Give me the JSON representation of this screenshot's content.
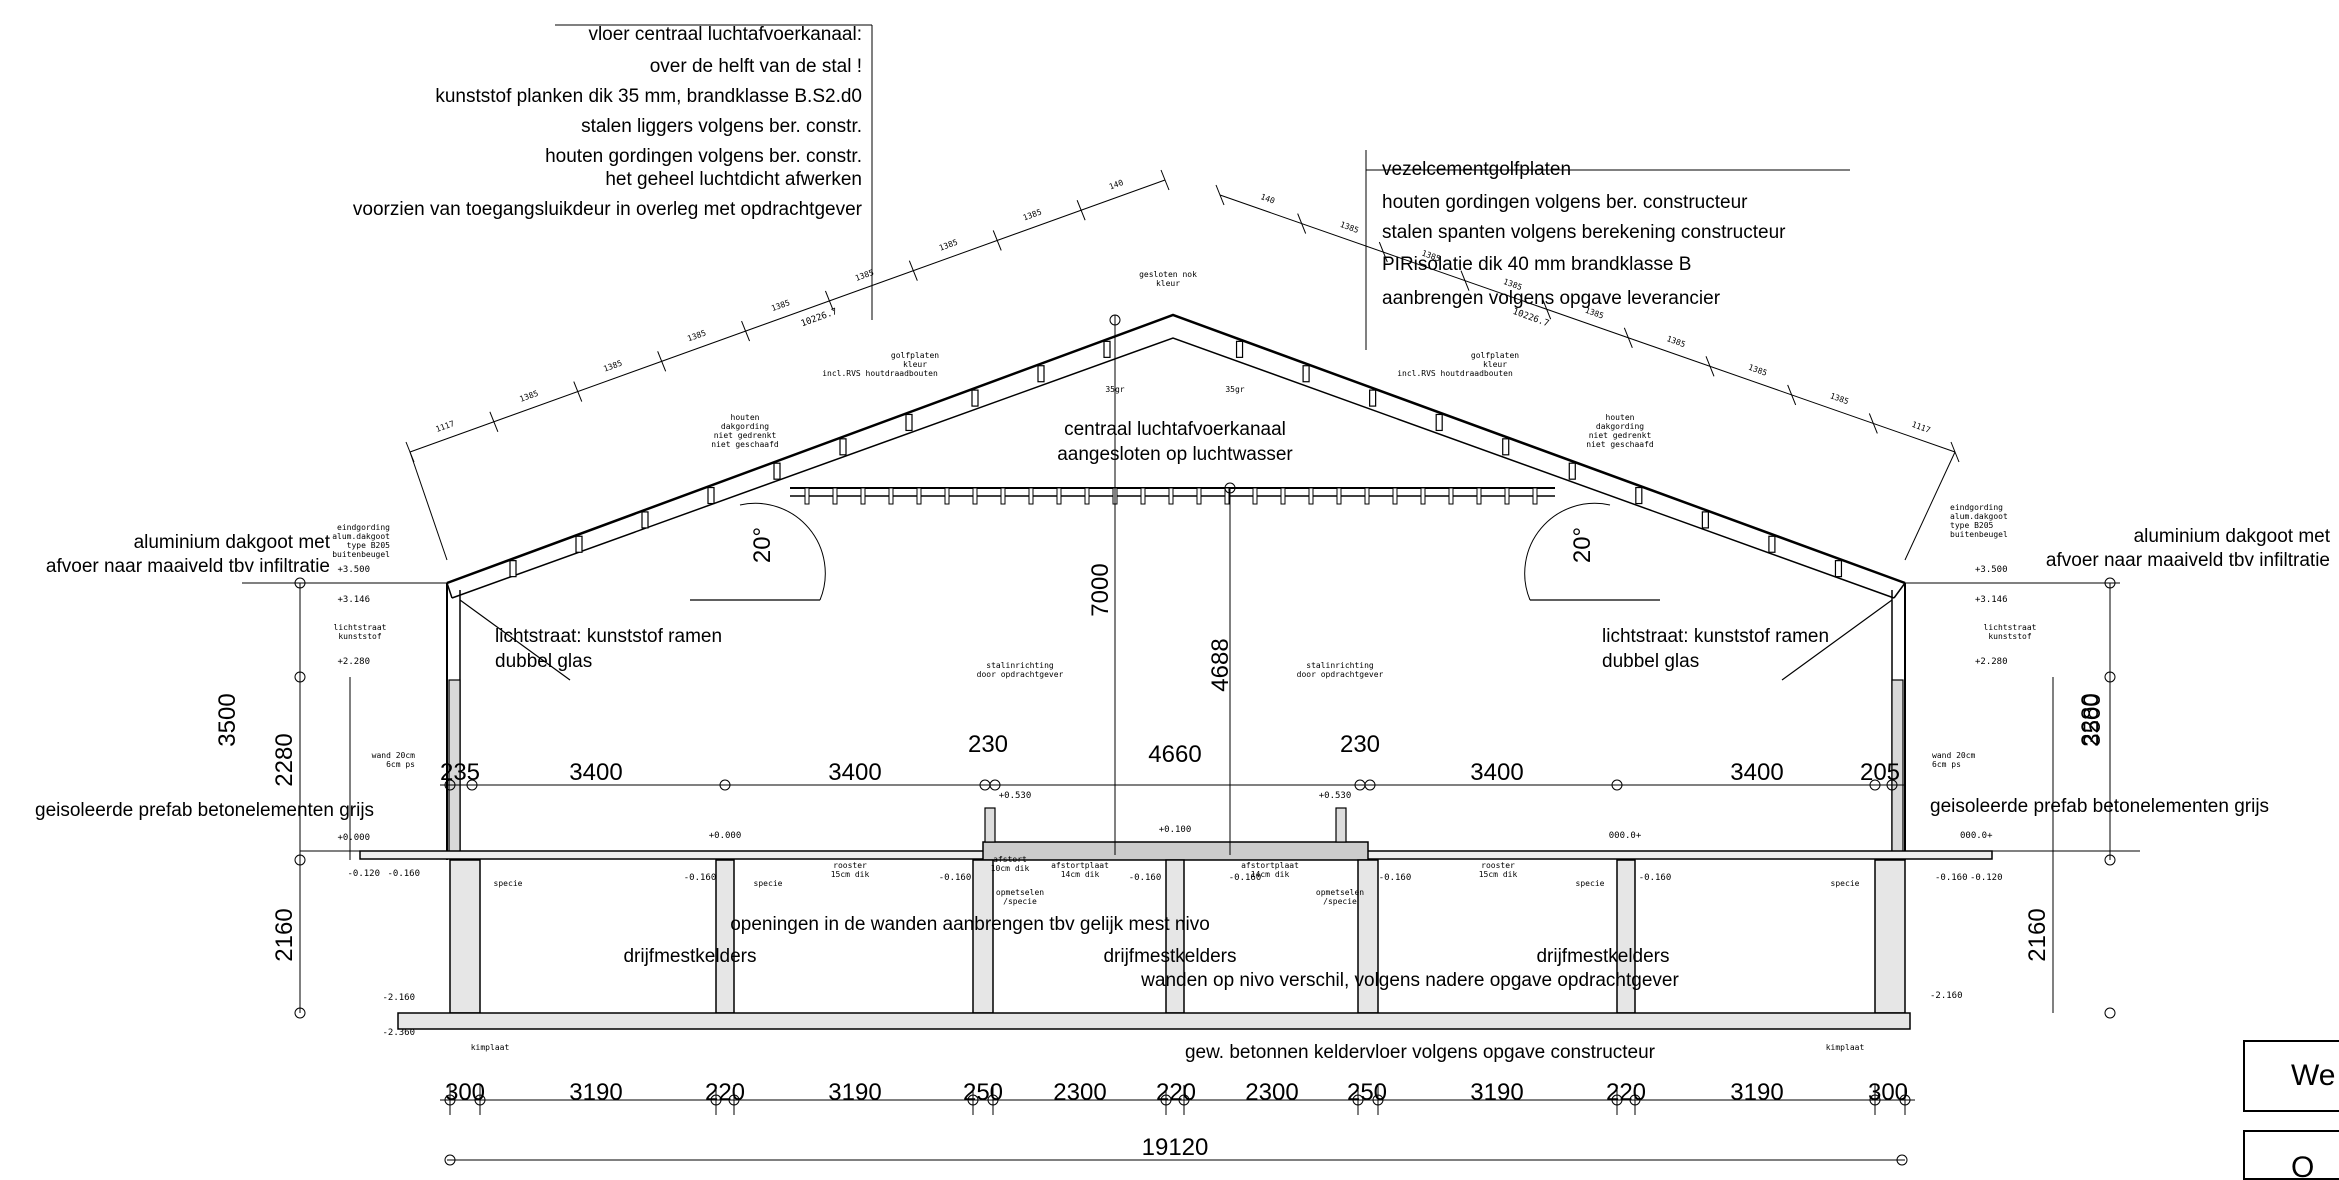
{
  "top_left_notes": [
    "vloer centraal luchtafvoerkanaal:",
    "over de helft van de stal !",
    "kunststof planken dik 35 mm, brandklasse B.S2.d0",
    "stalen liggers volgens ber. constr.",
    "houten gordingen volgens ber. constr.",
    "het geheel luchtdicht afwerken",
    "voorzien van toegangsluikdeur in overleg met opdrachtgever"
  ],
  "top_right_notes": [
    "vezelcementgolfplaten",
    "houten gordingen volgens ber. constructeur",
    "stalen spanten volgens berekening constructeur",
    "PIRisolatie dik 40 mm brandklasse B",
    "aanbrengen volgens opgave leverancier"
  ],
  "center_notes": {
    "duct_1": "centraal luchtafvoerkanaal",
    "duct_2": "aangesloten op luchtwasser",
    "openings": "openingen in de wanden aanbrengen tbv gelijk mest nivo",
    "walls": "wanden op nivo verschil, volgens nadere opgave opdrachtgever",
    "floor": "gew. betonnen keldervloer volgens opgave constructeur"
  },
  "side_notes": {
    "gutter_1": "aluminium dakgoot met",
    "gutter_2": "afvoer naar maaiveld tbv infiltratie",
    "skylight_1": "lichtstraat: kunststof ramen",
    "skylight_2": "dubbel glas",
    "prefab": "geisoleerde prefab betonelementen grijs",
    "cellar": "drijfmestkelders"
  },
  "angles": {
    "left": "20°",
    "right": "20°"
  },
  "heights": {
    "ridge": "7000",
    "duct": "4688",
    "wall_total": "3500",
    "wall_panel": "2280",
    "cellar": "2160"
  },
  "upper_dims": [
    "235",
    "3400",
    "3400",
    "230",
    "4660",
    "230",
    "3400",
    "3400",
    "205"
  ],
  "bottom_dims": [
    "300",
    "3190",
    "220",
    "3190",
    "250",
    "2300",
    "220",
    "2300",
    "250",
    "3190",
    "220",
    "3190",
    "300"
  ],
  "total_width": "19120",
  "small_labels": {
    "ridge_cap": "gesloten nok",
    "color": "kleur",
    "sheets": "golfplaten",
    "bolts": "incl.RVS houtdraadbouten",
    "purlin_1": "houten",
    "purlin_2": "dakgording",
    "purlin_3": "niet gedrenkt",
    "purlin_4": "niet geschaafd",
    "eaves_1": "eindgording",
    "eaves_2": "alum.dakgoot",
    "eaves_3": "type B205",
    "eaves_4": "buitenbeugel",
    "skylight_1": "lichtstraat",
    "skylight_2": "kunststof",
    "wall_1": "wand 20cm",
    "wall_2": "6cm ps",
    "stall_1": "stalinrichting",
    "stall_2": "door opdrachtgever",
    "slat": "rooster",
    "slat_thk": "15cm dik",
    "mortar": "specie",
    "pour_1": "afstort",
    "pour_2": "10cm dik",
    "pour_plate_1": "afstortplaat",
    "pour_plate_2": "14cm dik",
    "support_1": "opmetselen",
    "support_2": "/specie",
    "footing": "kimplaat",
    "slope": "35gr"
  },
  "levels": {
    "eaves_top": "+3.500",
    "eaves": "+3.146",
    "sill": "+2.280",
    "floor_left": "+0.000",
    "floor_right": "000.0+",
    "neg_120": "-0.120",
    "neg_160": "-0.160",
    "center": "+0.100",
    "platform": "+0.530",
    "cellar_top": "-2.160",
    "cellar_bottom": "-2.360"
  },
  "roof_dims_left": [
    "1117",
    "1385",
    "1385",
    "1385",
    "1385",
    "1385",
    "1385",
    "1385",
    "140"
  ],
  "roof_total_left": "10226.7",
  "roof_dims_right": [
    "140",
    "1385",
    "1385",
    "1385",
    "1385",
    "1385",
    "1385",
    "1385",
    "1117"
  ],
  "roof_total_right": "10226.7",
  "title_box_1": "We",
  "title_box_2": "O",
  "colors": {
    "line": "#000000",
    "concrete": "#e6e6e6",
    "background": "#ffffff"
  }
}
